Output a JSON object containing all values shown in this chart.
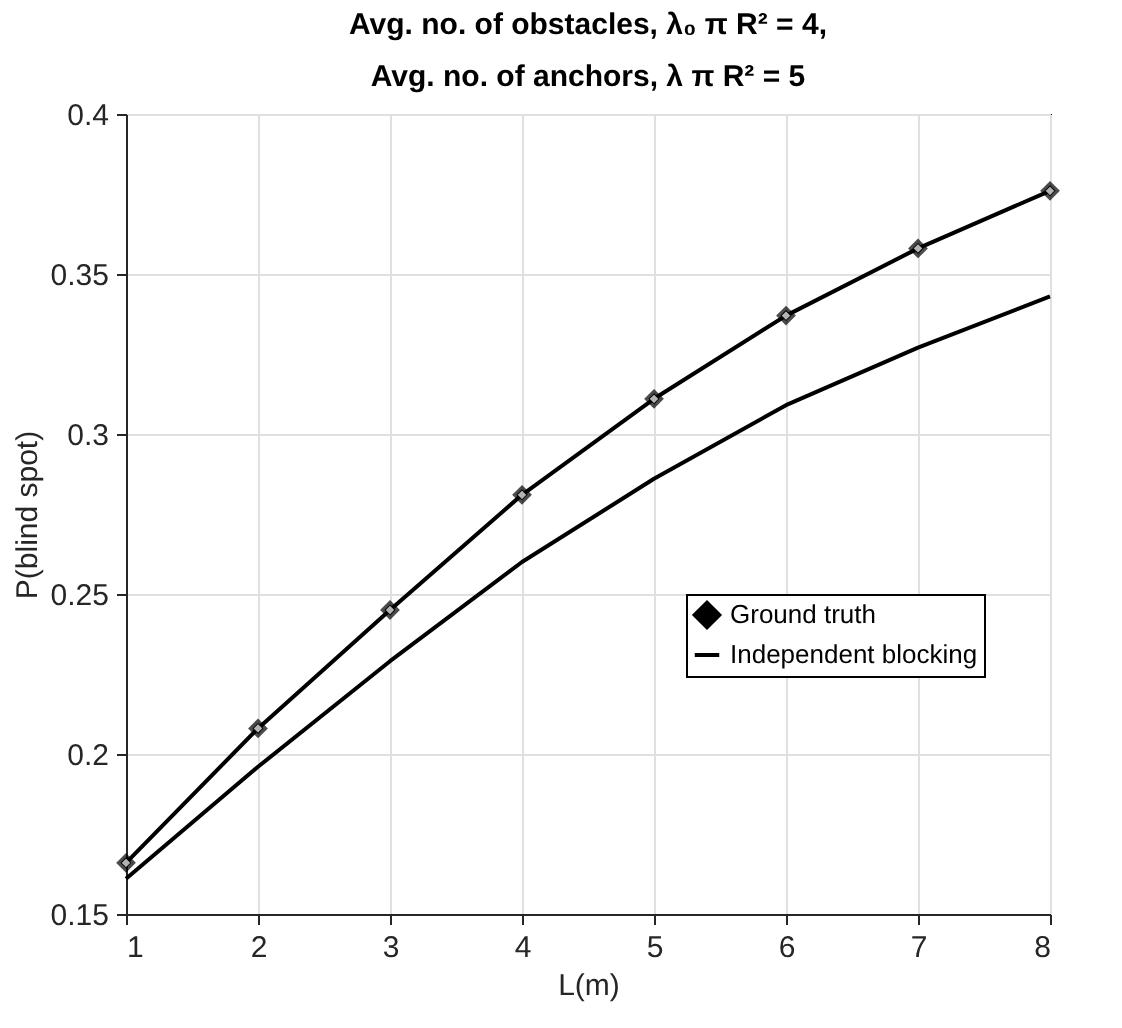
{
  "chart_data": {
    "type": "line",
    "title": [
      "Avg. no. of obstacles, λ₀ π R² = 4,",
      "Avg. no. of anchors, λ π R² = 5"
    ],
    "xlabel": "L(m)",
    "ylabel": "P(blind spot)",
    "x": [
      1,
      2,
      3,
      4,
      5,
      6,
      7,
      8
    ],
    "series": [
      {
        "name": "Ground truth",
        "color": "#000000",
        "marker": "diamond",
        "values": [
          0.166,
          0.208,
          0.245,
          0.281,
          0.311,
          0.337,
          0.358,
          0.376
        ]
      },
      {
        "name": "Independent blocking",
        "color": "#000000",
        "marker": "none",
        "values": [
          0.161,
          0.196,
          0.229,
          0.26,
          0.286,
          0.309,
          0.327,
          0.343
        ]
      }
    ],
    "xlim": [
      1,
      8
    ],
    "xticks": [
      1,
      2,
      3,
      4,
      5,
      6,
      7,
      8
    ],
    "ylim": [
      0.15,
      0.4
    ],
    "yticks": [
      0.15,
      0.2,
      0.25,
      0.3,
      0.35,
      0.4
    ],
    "grid": true,
    "legend": "bottom right",
    "line_style": "solid"
  }
}
